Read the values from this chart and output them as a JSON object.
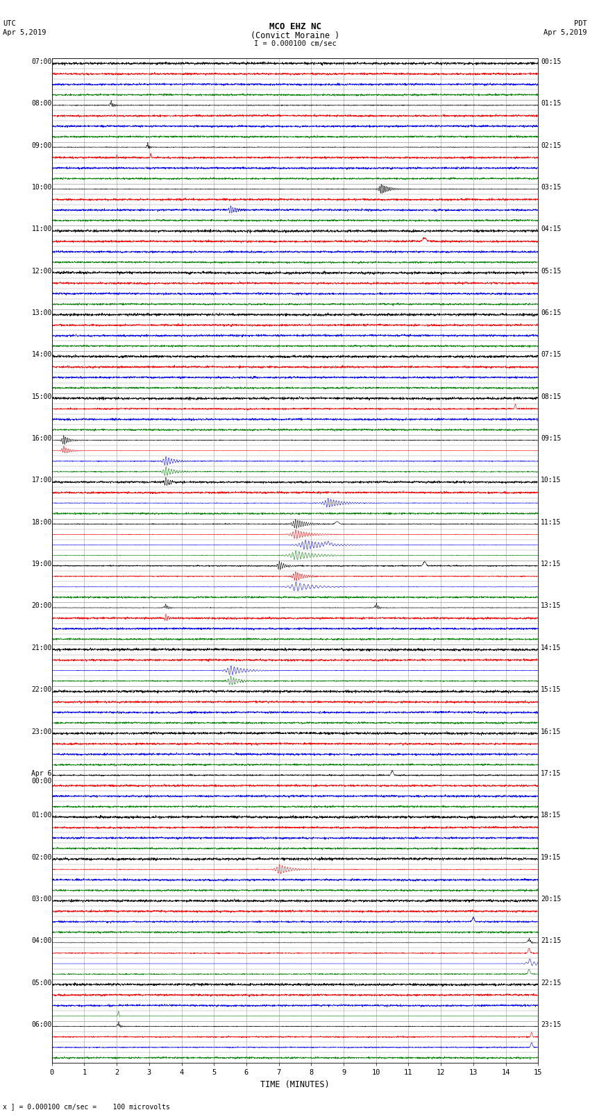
{
  "title_line1": "MCO EHZ NC",
  "title_line2": "(Convict Moraine )",
  "scale_text": "I = 0.000100 cm/sec",
  "left_label_line1": "UTC",
  "left_label_line2": "Apr 5,2019",
  "right_label_line1": "PDT",
  "right_label_line2": "Apr 5,2019",
  "bottom_note": "x ] = 0.000100 cm/sec =    100 microvolts",
  "xlabel": "TIME (MINUTES)",
  "left_times": [
    "07:00",
    "08:00",
    "09:00",
    "10:00",
    "11:00",
    "12:00",
    "13:00",
    "14:00",
    "15:00",
    "16:00",
    "17:00",
    "18:00",
    "19:00",
    "20:00",
    "21:00",
    "22:00",
    "23:00",
    "Apr 6\n00:00",
    "01:00",
    "02:00",
    "03:00",
    "04:00",
    "05:00",
    "06:00"
  ],
  "right_times": [
    "00:15",
    "01:15",
    "02:15",
    "03:15",
    "04:15",
    "05:15",
    "06:15",
    "07:15",
    "08:15",
    "09:15",
    "10:15",
    "11:15",
    "12:15",
    "13:15",
    "14:15",
    "15:15",
    "16:15",
    "17:15",
    "18:15",
    "19:15",
    "20:15",
    "21:15",
    "22:15",
    "23:15"
  ],
  "num_hours": 24,
  "colors": [
    "black",
    "red",
    "blue",
    "green"
  ],
  "background_color": "white",
  "grid_color": "#999999",
  "fig_width": 8.5,
  "fig_height": 16.13,
  "dpi": 100,
  "xmin": 0,
  "xmax": 15,
  "xticks": [
    0,
    1,
    2,
    3,
    4,
    5,
    6,
    7,
    8,
    9,
    10,
    11,
    12,
    13,
    14,
    15
  ],
  "noise_seed": 1234
}
